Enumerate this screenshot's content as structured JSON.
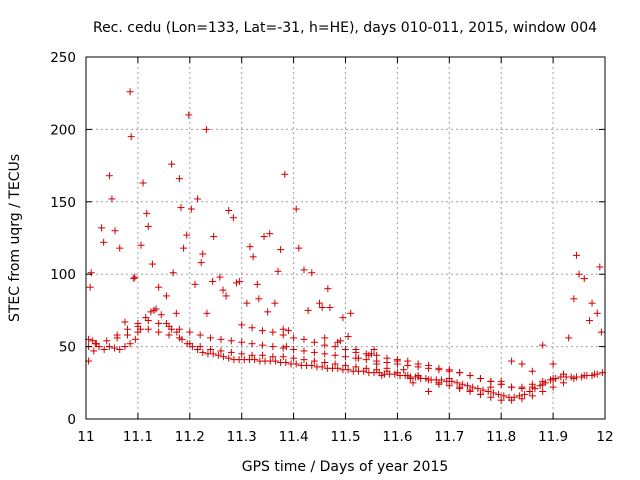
{
  "chart_data": {
    "type": "scatter",
    "title": "Rec. cedu (Lon=133, Lat=-31, h=HE), days 010-011, 2015, window 004",
    "xlabel": "GPS time / Days of year 2015",
    "ylabel": "STEC from uqrg / TECUs",
    "xlim": [
      11,
      12
    ],
    "ylim": [
      0,
      250
    ],
    "xticks": [
      "11",
      "11.1",
      "11.2",
      "11.3",
      "11.4",
      "11.5",
      "11.6",
      "11.7",
      "11.8",
      "11.9",
      "12"
    ],
    "yticks": [
      "0",
      "50",
      "100",
      "150",
      "200",
      "250"
    ],
    "grid": true,
    "marker": "plus",
    "color": "#d00000",
    "series": [
      {
        "x": [
          11.005,
          11.008,
          11.01,
          11.013,
          11.018,
          11.03,
          11.034,
          11.045,
          11.05,
          11.056,
          11.065,
          11.075,
          11.085,
          11.087,
          11.092,
          11.094,
          11.1,
          11.106,
          11.11,
          11.117,
          11.12,
          11.128,
          11.131,
          11.14,
          11.155,
          11.165,
          11.168,
          11.174,
          11.18,
          11.183,
          11.188,
          11.194,
          11.198,
          11.203,
          11.21,
          11.215,
          11.222,
          11.225,
          11.232,
          11.233,
          11.244,
          11.246,
          11.258,
          11.264,
          11.27,
          11.275,
          11.284,
          11.29,
          11.296,
          11.31,
          11.316,
          11.322,
          11.33,
          11.333,
          11.343,
          11.35,
          11.354,
          11.364,
          11.37,
          11.375,
          11.38,
          11.383,
          11.386,
          11.39,
          11.405,
          11.41,
          11.42,
          11.428,
          11.435,
          11.45,
          11.455,
          11.46,
          11.466,
          11.47,
          11.485,
          11.49,
          11.495,
          11.505,
          11.51,
          11.52,
          11.525,
          11.545,
          11.55,
          11.555,
          11.56,
          11.57,
          11.58,
          11.6,
          11.612,
          11.625,
          11.63,
          11.64,
          11.66,
          11.68,
          11.7,
          11.72,
          11.74,
          11.76,
          11.78,
          11.8,
          11.82,
          11.84,
          11.86,
          11.88,
          11.9,
          11.93,
          11.94,
          11.945,
          11.95,
          11.96,
          11.97,
          11.975,
          11.985,
          11.99,
          11.993
        ],
        "y": [
          40,
          91,
          101,
          54,
          52,
          132,
          122,
          168,
          152,
          130,
          118,
          67,
          226,
          195,
          97,
          98,
          66,
          120,
          163,
          142,
          133,
          107,
          75,
          91,
          85,
          176,
          101,
          73,
          166,
          146,
          118,
          127,
          210,
          145,
          93,
          152,
          108,
          114,
          200,
          73,
          95,
          126,
          98,
          89,
          85,
          144,
          139,
          94,
          95,
          80,
          119,
          112,
          93,
          83,
          126,
          74,
          128,
          80,
          102,
          117,
          62,
          169,
          50,
          61,
          145,
          118,
          103,
          75,
          101,
          80,
          77,
          56,
          90,
          77,
          53,
          54,
          70,
          57,
          73,
          48,
          42,
          44,
          45,
          48,
          38,
          30,
          35,
          40,
          34,
          28,
          25,
          30,
          19,
          24,
          28,
          22,
          20,
          17,
          22,
          26,
          40,
          38,
          33,
          51,
          38,
          56,
          83,
          113,
          100,
          97,
          68,
          80,
          73,
          105,
          60
        ]
      },
      {
        "x": [
          11.005,
          11.015,
          11.025,
          11.035,
          11.045,
          11.055,
          11.065,
          11.075,
          11.085,
          11.095,
          11.105,
          11.115,
          11.125,
          11.135,
          11.145,
          11.155,
          11.165,
          11.175,
          11.185,
          11.195,
          11.205,
          11.215,
          11.225,
          11.235,
          11.245,
          11.255,
          11.265,
          11.275,
          11.285,
          11.295,
          11.305,
          11.315,
          11.325,
          11.335,
          11.345,
          11.355,
          11.365,
          11.375,
          11.385,
          11.395,
          11.405,
          11.415,
          11.425,
          11.435,
          11.445,
          11.455,
          11.465,
          11.475,
          11.485,
          11.495,
          11.505,
          11.515,
          11.525,
          11.535,
          11.545,
          11.555,
          11.565,
          11.575,
          11.585,
          11.595,
          11.605,
          11.615,
          11.625,
          11.635,
          11.645,
          11.655,
          11.665,
          11.675,
          11.685,
          11.695,
          11.705,
          11.715,
          11.725,
          11.735,
          11.745,
          11.755,
          11.765,
          11.775,
          11.785,
          11.795,
          11.805,
          11.815,
          11.825,
          11.835,
          11.845,
          11.855,
          11.865,
          11.875,
          11.885,
          11.895,
          11.905,
          11.915,
          11.925,
          11.935,
          11.945,
          11.955,
          11.965,
          11.975,
          11.985,
          11.995
        ],
        "y": [
          55,
          47,
          50,
          48,
          50,
          49,
          48,
          50,
          52,
          55,
          62,
          70,
          74,
          76,
          72,
          66,
          62,
          60,
          55,
          52,
          50,
          48,
          46,
          45,
          45,
          44,
          43,
          42,
          41,
          41,
          41,
          41,
          41,
          40,
          40,
          40,
          40,
          39,
          39,
          38,
          38,
          37,
          37,
          37,
          36,
          36,
          35,
          35,
          35,
          34,
          34,
          33,
          33,
          33,
          32,
          32,
          32,
          31,
          31,
          31,
          30,
          30,
          29,
          29,
          28,
          28,
          27,
          27,
          27,
          26,
          26,
          25,
          24,
          23,
          22,
          21,
          20,
          19,
          18,
          17,
          16,
          15,
          15,
          16,
          17,
          19,
          21,
          23,
          25,
          27,
          28,
          29,
          29,
          29,
          29,
          29,
          30,
          30,
          31,
          32
        ]
      },
      {
        "x": [
          11.005,
          11.02,
          11.04,
          11.06,
          11.08,
          11.1,
          11.12,
          11.14,
          11.16,
          11.18,
          11.2,
          11.22,
          11.24,
          11.26,
          11.28,
          11.3,
          11.32,
          11.34,
          11.36,
          11.38,
          11.4,
          11.42,
          11.44,
          11.46,
          11.48,
          11.5,
          11.52,
          11.54,
          11.56,
          11.58,
          11.6,
          11.62,
          11.64,
          11.66,
          11.68,
          11.7,
          11.72,
          11.74,
          11.76,
          11.78,
          11.8,
          11.82,
          11.84,
          11.86,
          11.88,
          11.9,
          11.92,
          11.94,
          11.96,
          11.98
        ],
        "y": [
          50,
          52,
          54,
          56,
          58,
          60,
          62,
          60,
          58,
          56,
          52,
          50,
          48,
          47,
          46,
          45,
          44,
          44,
          43,
          43,
          42,
          41,
          40,
          39,
          38,
          37,
          36,
          35,
          34,
          33,
          32,
          30,
          29,
          27,
          25,
          23,
          21,
          19,
          17,
          15,
          13,
          13,
          14,
          16,
          19,
          22,
          25,
          28,
          30,
          31
        ]
      },
      {
        "x": [
          11.06,
          11.08,
          11.1,
          11.12,
          11.14,
          11.16,
          11.18,
          11.2,
          11.22,
          11.24,
          11.26,
          11.28,
          11.3,
          11.32,
          11.34,
          11.36,
          11.38,
          11.4,
          11.42,
          11.44,
          11.46,
          11.48,
          11.5,
          11.52,
          11.54,
          11.56,
          11.58,
          11.6,
          11.62,
          11.64,
          11.66,
          11.68,
          11.7,
          11.72,
          11.74,
          11.76,
          11.78,
          11.8,
          11.82,
          11.84,
          11.86,
          11.88,
          11.9,
          11.92
        ],
        "y": [
          58,
          62,
          64,
          68,
          66,
          64,
          62,
          60,
          58,
          56,
          55,
          54,
          53,
          52,
          51,
          50,
          49,
          48,
          47,
          46,
          45,
          44,
          43,
          42,
          41,
          40,
          39,
          38,
          37,
          36,
          35,
          34,
          33,
          32,
          30,
          28,
          26,
          24,
          22,
          22,
          24,
          26,
          28,
          31
        ]
      },
      {
        "x": [
          11.3,
          11.32,
          11.34,
          11.36,
          11.38,
          11.4,
          11.42,
          11.44,
          11.46,
          11.48,
          11.5,
          11.52,
          11.54,
          11.56,
          11.58,
          11.6,
          11.62,
          11.64,
          11.66,
          11.68,
          11.7,
          11.72,
          11.74,
          11.76,
          11.78,
          11.8,
          11.82,
          11.84,
          11.86,
          11.88,
          11.9
        ],
        "y": [
          65,
          63,
          61,
          60,
          58,
          56,
          55,
          53,
          51,
          50,
          48,
          46,
          45,
          44,
          42,
          41,
          40,
          38,
          37,
          35,
          34,
          32,
          30,
          28,
          26,
          24,
          22,
          21,
          22,
          24,
          27
        ]
      }
    ]
  }
}
